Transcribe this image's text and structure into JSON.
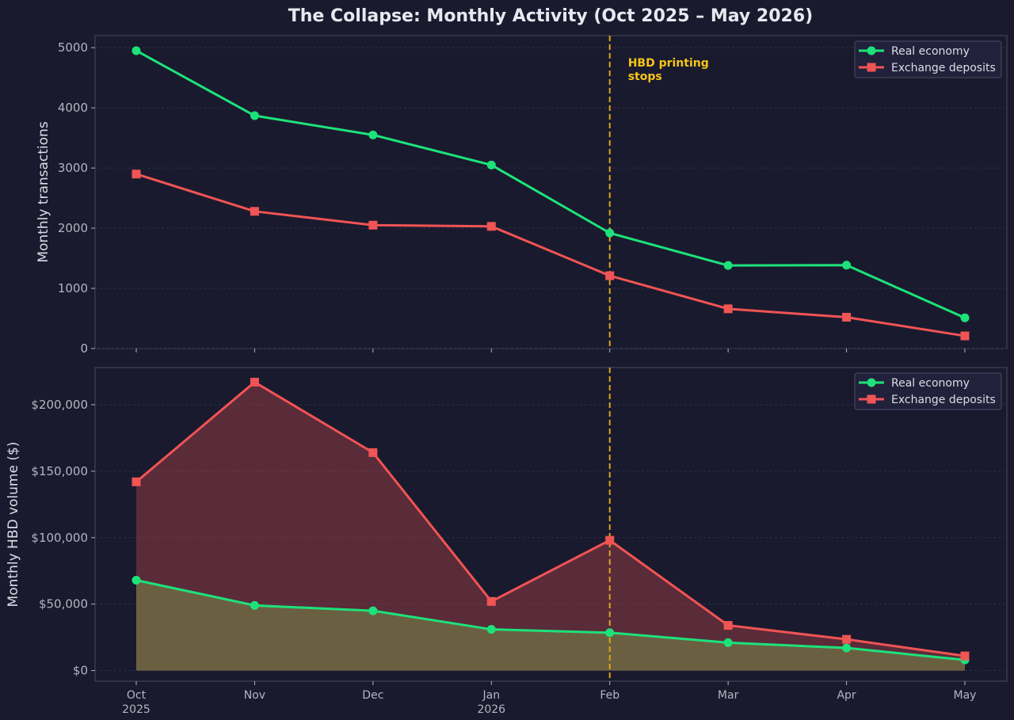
{
  "chart_data": [
    {
      "type": "line",
      "title": "The Collapse: Monthly Activity (Oct 2025 – May 2026)",
      "categories": [
        "Oct\n2025",
        "Nov",
        "Dec",
        "Jan\n2026",
        "Feb",
        "Mar",
        "Apr",
        "May"
      ],
      "ylabel": "Monthly transactions",
      "ylim": [
        0,
        5200
      ],
      "yticks": [
        0,
        1000,
        2000,
        3000,
        4000,
        5000
      ],
      "grid": true,
      "legend": "top-right",
      "series": [
        {
          "name": "Real economy",
          "values": [
            4950,
            3870,
            3550,
            3050,
            1920,
            1380,
            1385,
            510
          ],
          "color": "#1de27a",
          "marker": "circle"
        },
        {
          "name": "Exchange deposits",
          "values": [
            2900,
            2280,
            2050,
            2030,
            1210,
            660,
            520,
            210
          ],
          "color": "#f05454",
          "marker": "square"
        }
      ],
      "annotation": {
        "text": "HBD printing\nstops",
        "x_category": "Feb",
        "color": "#f5c518"
      }
    },
    {
      "type": "area",
      "categories": [
        "Oct\n2025",
        "Nov",
        "Dec",
        "Jan\n2026",
        "Feb",
        "Mar",
        "Apr",
        "May"
      ],
      "ylabel": "Monthly HBD volume ($)",
      "ylim": [
        -8000,
        228000
      ],
      "yticks": [
        0,
        50000,
        100000,
        150000,
        200000
      ],
      "ytick_labels": [
        "$0",
        "$50,000",
        "$100,000",
        "$150,000",
        "$200,000"
      ],
      "grid": true,
      "legend": "top-right",
      "series": [
        {
          "name": "Real economy",
          "values": [
            68000,
            49000,
            45000,
            31000,
            28500,
            21000,
            17000,
            8000
          ],
          "color": "#1de27a",
          "marker": "circle"
        },
        {
          "name": "Exchange deposits",
          "values": [
            142000,
            217000,
            164000,
            52000,
            98000,
            34000,
            23500,
            11000
          ],
          "color": "#f05454",
          "marker": "square"
        }
      ],
      "vline_category": "Feb",
      "vline_color": "#d9a520"
    }
  ]
}
